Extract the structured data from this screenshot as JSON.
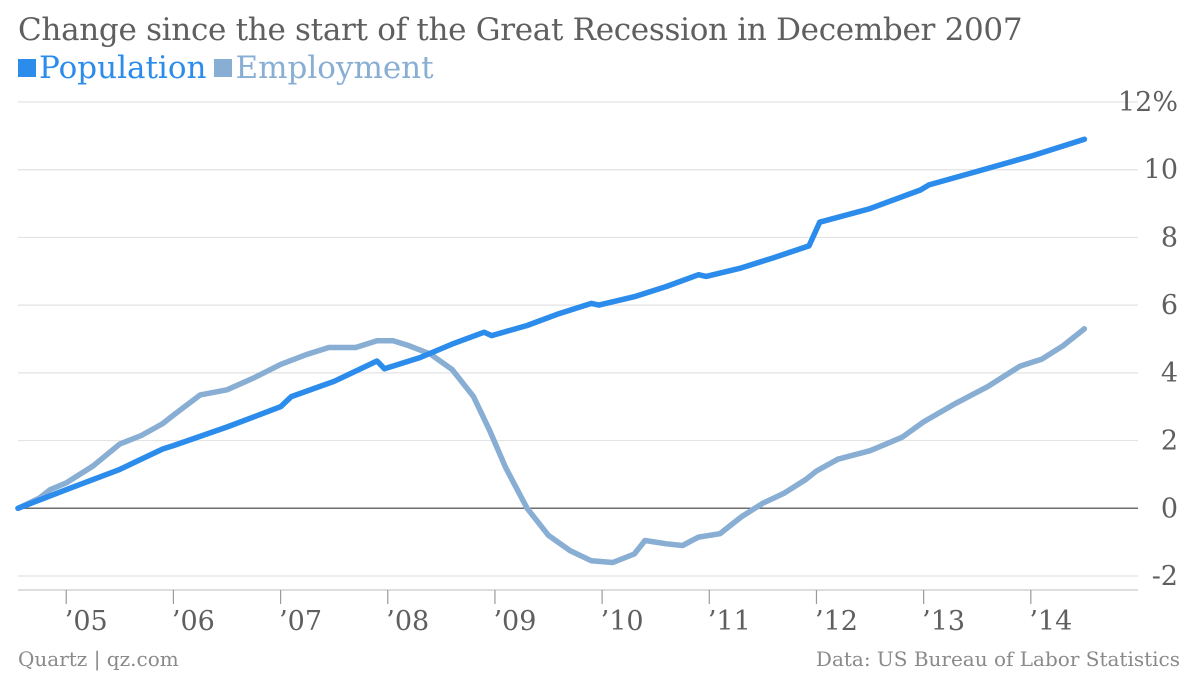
{
  "chart_data": {
    "type": "line",
    "title": "Change since the start of the Great Recession in December 2007",
    "yunit": "%",
    "ylim": [
      -2,
      12
    ],
    "yticks": [
      -2,
      0,
      2,
      4,
      6,
      8,
      10,
      12
    ],
    "ytick_labels": [
      "-2",
      "0",
      "2",
      "4",
      "6",
      "8",
      "10",
      "12%"
    ],
    "xtick_labels": [
      "’05",
      "’06",
      "’07",
      "’08",
      "’09",
      "’10",
      "’11",
      "’12",
      "’13",
      "’14"
    ],
    "xtick_years": [
      2005,
      2006,
      2007,
      2008,
      2009,
      2010,
      2011,
      2012,
      2013,
      2014
    ],
    "xlim": [
      2004.55,
      2015.0
    ],
    "grid": true,
    "legend_position": "top-left",
    "series": [
      {
        "name": "Population",
        "color": "#2b8ceb",
        "points": [
          [
            2004.55,
            0.0
          ],
          [
            2005.0,
            0.55
          ],
          [
            2005.5,
            1.15
          ],
          [
            2005.9,
            1.75
          ],
          [
            2006.0,
            1.85
          ],
          [
            2006.5,
            2.4
          ],
          [
            2007.0,
            3.0
          ],
          [
            2007.1,
            3.3
          ],
          [
            2007.5,
            3.75
          ],
          [
            2007.9,
            4.35
          ],
          [
            2007.97,
            4.12
          ],
          [
            2008.3,
            4.45
          ],
          [
            2008.6,
            4.85
          ],
          [
            2008.9,
            5.2
          ],
          [
            2008.97,
            5.1
          ],
          [
            2009.3,
            5.4
          ],
          [
            2009.6,
            5.75
          ],
          [
            2009.9,
            6.05
          ],
          [
            2009.97,
            6.0
          ],
          [
            2010.3,
            6.25
          ],
          [
            2010.6,
            6.55
          ],
          [
            2010.9,
            6.9
          ],
          [
            2010.97,
            6.85
          ],
          [
            2011.3,
            7.1
          ],
          [
            2011.6,
            7.4
          ],
          [
            2011.93,
            7.75
          ],
          [
            2012.03,
            8.45
          ],
          [
            2012.5,
            8.85
          ],
          [
            2012.97,
            9.4
          ],
          [
            2013.05,
            9.55
          ],
          [
            2013.5,
            9.95
          ],
          [
            2014.0,
            10.4
          ],
          [
            2014.5,
            10.9
          ]
        ]
      },
      {
        "name": "Employment",
        "color": "#88aed4",
        "points": [
          [
            2004.55,
            0.0
          ],
          [
            2004.75,
            0.3
          ],
          [
            2004.85,
            0.55
          ],
          [
            2005.0,
            0.75
          ],
          [
            2005.25,
            1.25
          ],
          [
            2005.5,
            1.9
          ],
          [
            2005.7,
            2.15
          ],
          [
            2005.9,
            2.5
          ],
          [
            2006.0,
            2.75
          ],
          [
            2006.25,
            3.35
          ],
          [
            2006.5,
            3.5
          ],
          [
            2006.75,
            3.85
          ],
          [
            2007.0,
            4.25
          ],
          [
            2007.25,
            4.55
          ],
          [
            2007.45,
            4.75
          ],
          [
            2007.7,
            4.75
          ],
          [
            2007.9,
            4.95
          ],
          [
            2008.05,
            4.95
          ],
          [
            2008.2,
            4.8
          ],
          [
            2008.4,
            4.55
          ],
          [
            2008.6,
            4.1
          ],
          [
            2008.8,
            3.3
          ],
          [
            2008.95,
            2.3
          ],
          [
            2009.1,
            1.2
          ],
          [
            2009.3,
            0.0
          ],
          [
            2009.5,
            -0.8
          ],
          [
            2009.7,
            -1.25
          ],
          [
            2009.9,
            -1.55
          ],
          [
            2010.1,
            -1.6
          ],
          [
            2010.3,
            -1.35
          ],
          [
            2010.4,
            -0.95
          ],
          [
            2010.6,
            -1.05
          ],
          [
            2010.75,
            -1.1
          ],
          [
            2010.9,
            -0.85
          ],
          [
            2011.1,
            -0.75
          ],
          [
            2011.3,
            -0.25
          ],
          [
            2011.5,
            0.15
          ],
          [
            2011.7,
            0.45
          ],
          [
            2011.9,
            0.85
          ],
          [
            2012.0,
            1.1
          ],
          [
            2012.2,
            1.45
          ],
          [
            2012.5,
            1.7
          ],
          [
            2012.8,
            2.1
          ],
          [
            2013.0,
            2.55
          ],
          [
            2013.3,
            3.1
          ],
          [
            2013.6,
            3.6
          ],
          [
            2013.9,
            4.2
          ],
          [
            2014.1,
            4.4
          ],
          [
            2014.3,
            4.8
          ],
          [
            2014.5,
            5.3
          ]
        ]
      }
    ]
  },
  "footer": {
    "source_left": "Quartz | qz.com",
    "source_right": "Data: US Bureau of Labor Statistics"
  }
}
